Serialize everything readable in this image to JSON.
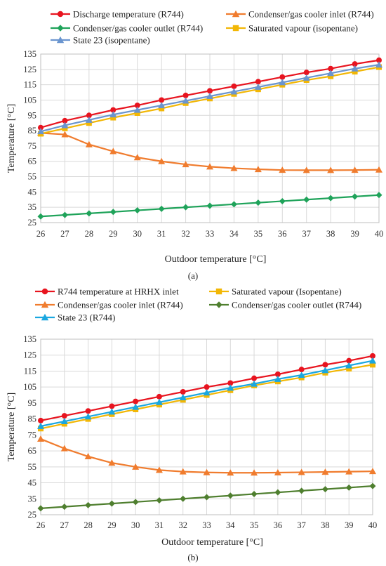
{
  "chart_data": [
    {
      "type": "line",
      "caption": "(a)",
      "xlabel": "Outdoor temperature [°C]",
      "ylabel": "Temperature [°C]",
      "x": [
        26,
        27,
        28,
        29,
        30,
        31,
        32,
        33,
        34,
        35,
        36,
        37,
        38,
        39,
        40
      ],
      "xlim": [
        26,
        40
      ],
      "ylim": [
        25,
        135
      ],
      "yticks": [
        25,
        35,
        45,
        55,
        65,
        75,
        85,
        95,
        105,
        115,
        125,
        135
      ],
      "grid": true,
      "legend_position": "top",
      "series": [
        {
          "name": "Discharge temperature (R744)",
          "color": "#e8141f",
          "marker": "circle",
          "values": [
            87,
            91.5,
            95,
            98.5,
            101.5,
            105,
            108,
            111,
            114,
            117,
            120,
            123,
            125.5,
            128.5,
            131
          ]
        },
        {
          "name": "Condenser/gas cooler inlet (R744)",
          "color": "#f07c2e",
          "marker": "triangle",
          "values": [
            83.5,
            82.5,
            76,
            71.5,
            67.5,
            65,
            63,
            61.5,
            60.5,
            59.8,
            59.3,
            59.2,
            59.2,
            59.3,
            59.5
          ]
        },
        {
          "name": "Condenser/gas cooler outlet (R744)",
          "color": "#1fa35a",
          "marker": "diamond",
          "values": [
            29,
            30,
            31,
            32,
            33,
            34,
            35,
            36,
            37,
            38,
            39,
            40,
            41,
            42,
            43
          ]
        },
        {
          "name": "Saturated vapour (isopentane)",
          "color": "#f2b705",
          "marker": "square",
          "values": [
            83,
            86.5,
            90,
            93.5,
            96.5,
            99.5,
            103,
            106,
            109,
            112,
            115,
            118,
            120.5,
            123.5,
            126.5
          ]
        },
        {
          "name": "State 23 (isopentane)",
          "color": "#6a95cf",
          "marker": "triangle",
          "values": [
            84.5,
            88.5,
            92,
            95.5,
            98.5,
            101.5,
            104.5,
            107.5,
            110.5,
            113.5,
            116.5,
            119.5,
            122.5,
            125.5,
            128
          ]
        }
      ]
    },
    {
      "type": "line",
      "caption": "(b)",
      "xlabel": "Outdoor temperature [°C]",
      "ylabel": "Temperature [°C]",
      "x": [
        26,
        27,
        28,
        29,
        30,
        31,
        32,
        33,
        34,
        35,
        36,
        37,
        38,
        39,
        40
      ],
      "xlim": [
        26,
        40
      ],
      "ylim": [
        25,
        135
      ],
      "yticks": [
        25,
        35,
        45,
        55,
        65,
        75,
        85,
        95,
        105,
        115,
        125,
        135
      ],
      "grid": true,
      "legend_position": "top",
      "series": [
        {
          "name": "R744 temperature at HRHX inlet",
          "color": "#e8141f",
          "marker": "circle",
          "values": [
            84,
            87,
            90,
            93,
            96,
            99,
            102,
            105,
            107.5,
            110.5,
            113,
            116,
            119,
            121.5,
            124.5
          ]
        },
        {
          "name": "Saturated vapour (Isopentane)",
          "color": "#f2b705",
          "marker": "square",
          "values": [
            79,
            82,
            85,
            88,
            91,
            94,
            97,
            100,
            103,
            106,
            108.5,
            111,
            114,
            116.5,
            119
          ]
        },
        {
          "name": "Condenser/gas cooler inlet (R744)",
          "color": "#f07c2e",
          "marker": "triangle",
          "values": [
            72.5,
            66.5,
            61.5,
            57.5,
            55,
            53,
            52,
            51.5,
            51.3,
            51.3,
            51.4,
            51.6,
            51.8,
            52,
            52.2
          ]
        },
        {
          "name": "Condenser/gas cooler outlet (R744)",
          "color": "#4f7f2f",
          "marker": "diamond",
          "values": [
            29,
            30,
            31,
            32,
            33,
            34,
            35,
            36,
            37,
            38,
            39,
            40,
            41,
            42,
            43
          ]
        },
        {
          "name": "State 23 (R744)",
          "color": "#1aa7e0",
          "marker": "triangle",
          "values": [
            80.5,
            83.5,
            86.5,
            89.5,
            92.5,
            95.5,
            98.5,
            101.5,
            104.5,
            107,
            110,
            112.5,
            115.5,
            118.5,
            121.5
          ]
        }
      ]
    }
  ]
}
